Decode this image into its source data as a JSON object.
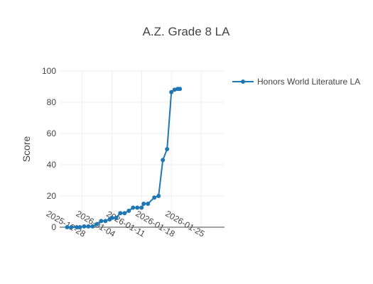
{
  "chart_data": {
    "type": "line",
    "title": "A.Z. Grade 8 LA",
    "xlabel": "",
    "ylabel": "Score",
    "ylim": [
      0,
      100
    ],
    "xlim": [
      "2025-12-22T18:00",
      "2026-01-30T12:00"
    ],
    "x_ticks": [
      "2025-12-28",
      "2026-01-04",
      "2026-01-11",
      "2026-01-18",
      "2026-01-25"
    ],
    "y_ticks": [
      0,
      20,
      40,
      60,
      80,
      100
    ],
    "grid": true,
    "legend_position": "top-right",
    "series": [
      {
        "name": "Honors World Literature LA",
        "color": "#1f77b4",
        "x": [
          "2025-12-24T12:00",
          "2025-12-25T12:00",
          "2025-12-26T18:00",
          "2025-12-27T12:00",
          "2025-12-28T12:00",
          "2025-12-29T12:00",
          "2025-12-30T12:00",
          "2025-12-31T12:00",
          "2026-01-01T12:00",
          "2026-01-02T12:00",
          "2026-01-03T12:00",
          "2026-01-04T00:00",
          "2026-01-05T00:00",
          "2026-01-06T00:00",
          "2026-01-07T00:00",
          "2026-01-08T00:00",
          "2026-01-09T00:00",
          "2026-01-10T00:00",
          "2026-01-11T00:00",
          "2026-01-11T12:00",
          "2026-01-12T12:00",
          "2026-01-14T00:00",
          "2026-01-15T00:00",
          "2026-01-16T00:00",
          "2026-01-17T00:00",
          "2026-01-18T00:00",
          "2026-01-18T18:00",
          "2026-01-19T12:00",
          "2026-01-20T00:00"
        ],
        "values": [
          0,
          0,
          0,
          0,
          0.5,
          0.5,
          0.5,
          2,
          4,
          4,
          5,
          6,
          6,
          9,
          9,
          10.5,
          12.5,
          12.5,
          12.5,
          15,
          15,
          19,
          20,
          43,
          50,
          86.5,
          88,
          88.5,
          88.5
        ]
      }
    ]
  }
}
